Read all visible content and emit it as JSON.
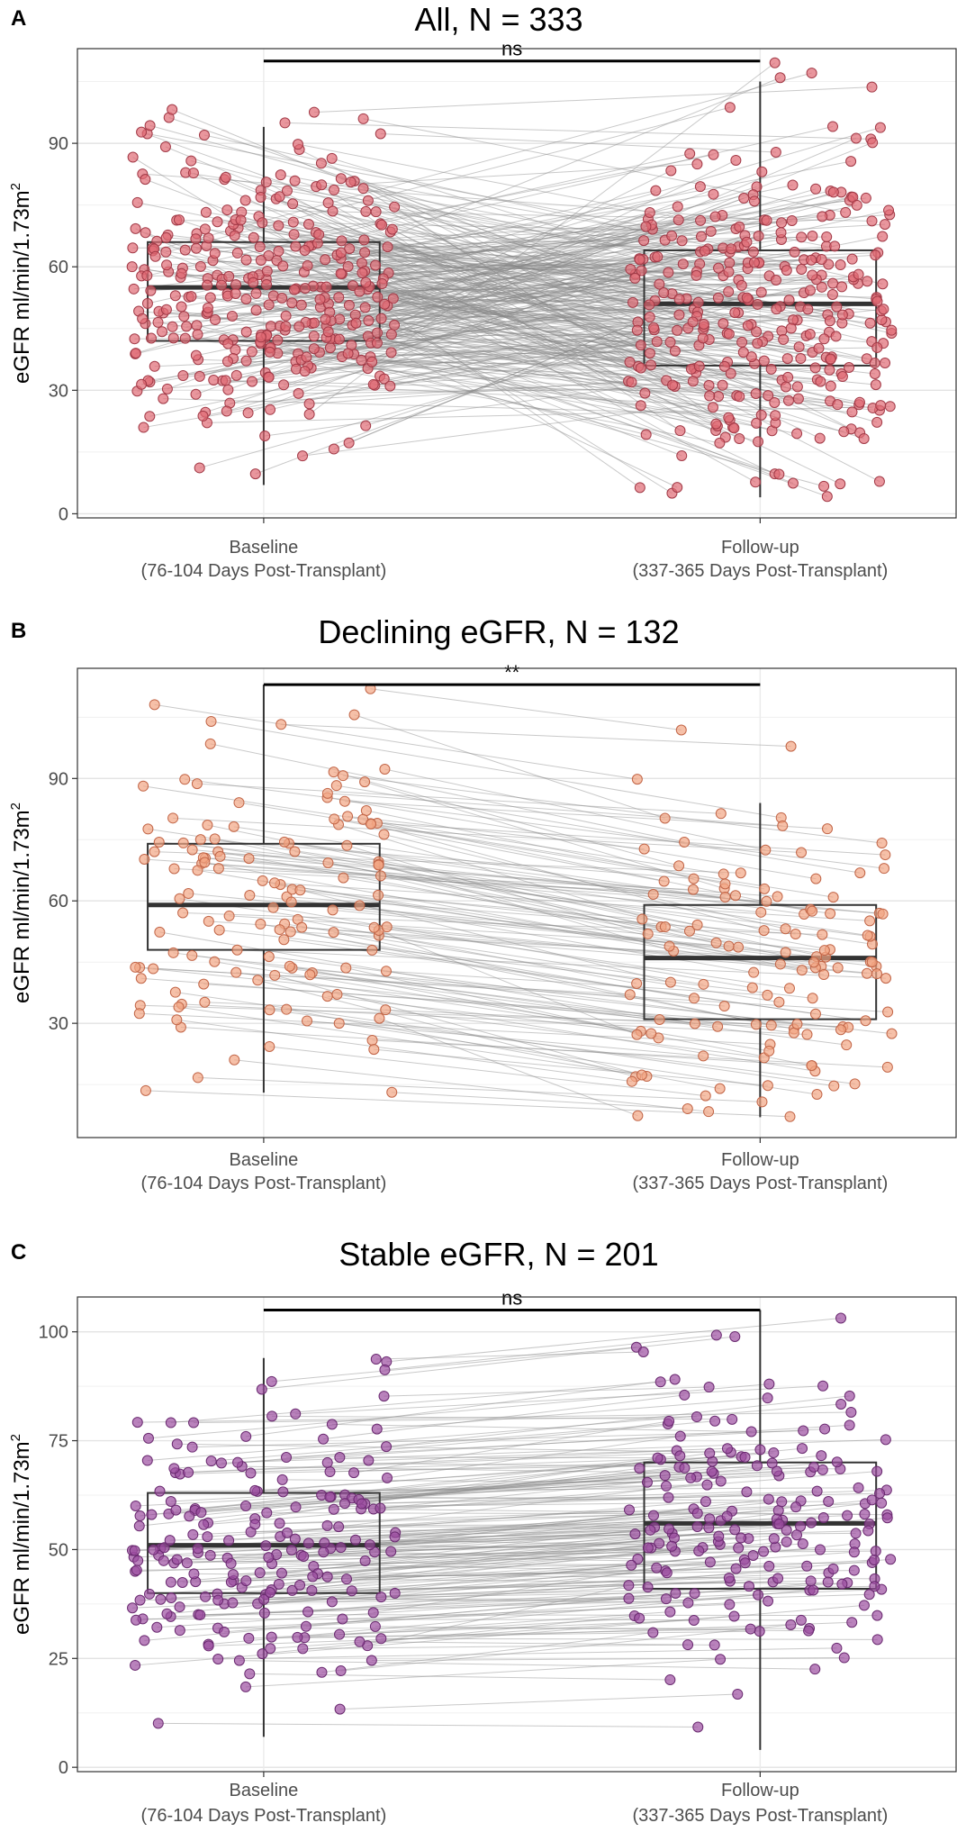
{
  "chart_data": [
    {
      "panel": "A",
      "type": "box-scatter-paired",
      "title": "All, N = 333",
      "ylabel": "eGFR ml/min/1.73m",
      "ylabel_superscript": "2",
      "ylim": [
        -1,
        113
      ],
      "yticks": [
        0,
        30,
        60,
        90
      ],
      "categories": [
        "Baseline\n(76-104 Days Post-Transplant)",
        "Follow-up\n(337-365 Days Post-Transplant)"
      ],
      "boxes": [
        {
          "name": "Baseline",
          "whisker_low": 7,
          "q1": 42,
          "median": 55,
          "q3": 66,
          "whisker_high": 94
        },
        {
          "name": "Follow-up",
          "whisker_low": 4,
          "q1": 36,
          "median": 51,
          "q3": 64,
          "whisker_high": 105
        }
      ],
      "significance": "ns",
      "significance_y": 110,
      "point_color": "#e06a74",
      "point_stroke": "#a23a47",
      "n_points": 333,
      "seed": 11
    },
    {
      "panel": "B",
      "type": "box-scatter-paired",
      "title": "Declining eGFR, N = 132",
      "ylabel": "eGFR ml/min/1.73m",
      "ylabel_superscript": "2",
      "ylim": [
        2,
        117
      ],
      "yticks": [
        30,
        60,
        90
      ],
      "categories": [
        "Baseline\n(76-104 Days Post-Transplant)",
        "Follow-up\n(337-365 Days Post-Transplant)"
      ],
      "boxes": [
        {
          "name": "Baseline",
          "whisker_low": 13,
          "q1": 48,
          "median": 59,
          "q3": 74,
          "whisker_high": 113
        },
        {
          "name": "Follow-up",
          "whisker_low": 7,
          "q1": 31,
          "median": 46,
          "q3": 59,
          "whisker_high": 84
        }
      ],
      "significance": "**",
      "significance_y": 113,
      "point_color": "#f2a583",
      "point_stroke": "#c26648",
      "n_points": 132,
      "seed": 29
    },
    {
      "panel": "C",
      "type": "box-scatter-paired",
      "title": "Stable eGFR, N = 201",
      "ylabel": "eGFR ml/min/1.73m",
      "ylabel_superscript": "2",
      "ylim": [
        -1,
        108
      ],
      "yticks": [
        0,
        25,
        50,
        75,
        100
      ],
      "categories": [
        "Baseline\n(76-104 Days Post-Transplant)",
        "Follow-up\n(337-365 Days Post-Transplant)"
      ],
      "boxes": [
        {
          "name": "Baseline",
          "whisker_low": 7,
          "q1": 40,
          "median": 51,
          "q3": 63,
          "whisker_high": 94
        },
        {
          "name": "Follow-up",
          "whisker_low": 4,
          "q1": 41,
          "median": 56,
          "q3": 70,
          "whisker_high": 105
        }
      ],
      "significance": "ns",
      "significance_y": 105,
      "point_color": "#9b4d9f",
      "point_stroke": "#6a2a70",
      "n_points": 201,
      "seed": 47
    }
  ]
}
